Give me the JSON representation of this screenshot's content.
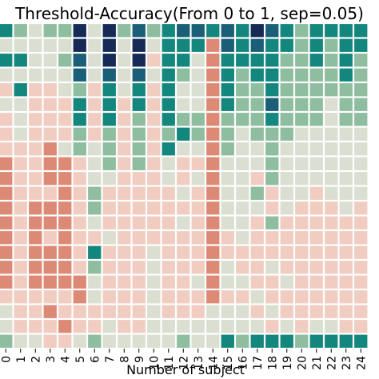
{
  "chart_data": {
    "type": "heatmap",
    "title": "Threshold-Accuracy(From 0 to 1, sep=0.05)",
    "xlabel": "Number of subject",
    "ylabel": "",
    "x_ticks": [
      "0",
      "1",
      "2",
      "3",
      "4",
      "5",
      "6",
      "7",
      "8",
      "9",
      "10",
      "11",
      "12",
      "13",
      "14",
      "15",
      "16",
      "17",
      "18",
      "19",
      "20",
      "21",
      "22",
      "23",
      "24"
    ],
    "y_ticks": [],
    "color_levels": [
      "#dc8a75",
      "#f1cdc1",
      "#dadfd2",
      "#8ebd9f",
      "#13867e",
      "#1b5e77",
      "#152a55"
    ],
    "grid_lines": "white",
    "values": [
      [
        4,
        3,
        2,
        3,
        3,
        6,
        2,
        6,
        3,
        5,
        3,
        4,
        5,
        5,
        4,
        5,
        4,
        6,
        5,
        4,
        3,
        4,
        4,
        4,
        4
      ],
      [
        2,
        2,
        2,
        2,
        2,
        6,
        2,
        6,
        2,
        6,
        2,
        4,
        4,
        4,
        0,
        5,
        4,
        5,
        4,
        4,
        3,
        4,
        3,
        4,
        4
      ],
      [
        4,
        4,
        2,
        2,
        3,
        5,
        2,
        6,
        2,
        6,
        1,
        4,
        4,
        2,
        0,
        4,
        4,
        4,
        4,
        3,
        3,
        4,
        3,
        4,
        3
      ],
      [
        2,
        2,
        2,
        2,
        2,
        5,
        2,
        5,
        2,
        5,
        2,
        4,
        3,
        2,
        0,
        4,
        3,
        4,
        4,
        3,
        3,
        3,
        3,
        4,
        3
      ],
      [
        1,
        4,
        1,
        1,
        2,
        3,
        1,
        4,
        2,
        4,
        1,
        4,
        2,
        2,
        0,
        4,
        3,
        3,
        4,
        3,
        3,
        3,
        3,
        3,
        3
      ],
      [
        2,
        2,
        1,
        1,
        1,
        4,
        1,
        4,
        1,
        4,
        1,
        4,
        2,
        2,
        0,
        4,
        3,
        3,
        5,
        3,
        3,
        3,
        2,
        3,
        3
      ],
      [
        1,
        2,
        1,
        1,
        1,
        4,
        1,
        4,
        1,
        3,
        1,
        4,
        3,
        3,
        0,
        3,
        3,
        3,
        4,
        3,
        3,
        3,
        2,
        3,
        3
      ],
      [
        1,
        2,
        1,
        1,
        1,
        3,
        1,
        3,
        1,
        3,
        1,
        3,
        4,
        3,
        0,
        3,
        2,
        3,
        3,
        3,
        2,
        2,
        2,
        2,
        2
      ],
      [
        1,
        1,
        1,
        0,
        2,
        3,
        2,
        3,
        1,
        3,
        1,
        4,
        2,
        2,
        0,
        3,
        2,
        2,
        3,
        2,
        2,
        2,
        2,
        2,
        2
      ],
      [
        0,
        1,
        1,
        0,
        0,
        1,
        2,
        3,
        1,
        3,
        1,
        2,
        1,
        1,
        0,
        2,
        2,
        2,
        3,
        2,
        2,
        2,
        2,
        2,
        2
      ],
      [
        0,
        1,
        1,
        0,
        0,
        1,
        2,
        2,
        1,
        1,
        1,
        2,
        1,
        2,
        0,
        2,
        2,
        1,
        3,
        2,
        2,
        2,
        2,
        2,
        2
      ],
      [
        0,
        1,
        1,
        1,
        0,
        1,
        3,
        1,
        1,
        1,
        1,
        1,
        2,
        1,
        0,
        2,
        2,
        3,
        1,
        2,
        2,
        1,
        2,
        2,
        2
      ],
      [
        0,
        1,
        0,
        0,
        0,
        1,
        3,
        1,
        1,
        1,
        1,
        1,
        1,
        1,
        0,
        2,
        2,
        2,
        1,
        2,
        1,
        1,
        1,
        2,
        1
      ],
      [
        0,
        1,
        0,
        0,
        0,
        1,
        2,
        1,
        1,
        1,
        1,
        1,
        2,
        1,
        0,
        2,
        2,
        1,
        3,
        1,
        1,
        1,
        1,
        1,
        1
      ],
      [
        0,
        1,
        0,
        1,
        0,
        1,
        1,
        2,
        1,
        1,
        1,
        1,
        1,
        1,
        0,
        1,
        2,
        1,
        1,
        1,
        1,
        1,
        1,
        1,
        1
      ],
      [
        0,
        1,
        0,
        0,
        0,
        1,
        4,
        1,
        1,
        1,
        2,
        1,
        1,
        1,
        0,
        1,
        1,
        1,
        1,
        1,
        1,
        1,
        1,
        1,
        1
      ],
      [
        0,
        1,
        0,
        0,
        0,
        1,
        3,
        1,
        1,
        1,
        2,
        1,
        1,
        1,
        0,
        2,
        1,
        1,
        2,
        1,
        1,
        1,
        1,
        1,
        1
      ],
      [
        0,
        1,
        0,
        0,
        0,
        0,
        2,
        1,
        1,
        1,
        2,
        1,
        1,
        2,
        0,
        2,
        2,
        1,
        1,
        2,
        1,
        1,
        1,
        1,
        1
      ],
      [
        1,
        1,
        1,
        1,
        1,
        0,
        2,
        1,
        1,
        1,
        2,
        1,
        1,
        1,
        0,
        1,
        1,
        2,
        1,
        1,
        1,
        1,
        1,
        1,
        1
      ],
      [
        2,
        1,
        1,
        0,
        1,
        1,
        1,
        1,
        1,
        1,
        2,
        1,
        1,
        1,
        2,
        2,
        2,
        1,
        2,
        1,
        1,
        1,
        1,
        1,
        1
      ],
      [
        2,
        1,
        1,
        1,
        0,
        1,
        1,
        2,
        1,
        1,
        2,
        2,
        2,
        2,
        2,
        2,
        2,
        2,
        1,
        2,
        1,
        2,
        2,
        1,
        1
      ],
      [
        3,
        2,
        2,
        1,
        1,
        2,
        3,
        2,
        2,
        2,
        2,
        2,
        3,
        2,
        2,
        4,
        3,
        4,
        4,
        4,
        3,
        4,
        4,
        4,
        4
      ]
    ]
  }
}
